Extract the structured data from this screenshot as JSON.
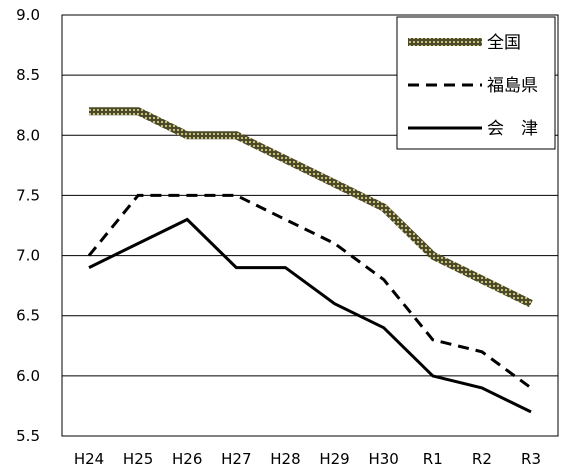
{
  "chart_data": {
    "type": "line",
    "title": "",
    "xlabel": "",
    "ylabel": "",
    "categories": [
      "H24",
      "H25",
      "H26",
      "H27",
      "H28",
      "H29",
      "H30",
      "R1",
      "R2",
      "R3"
    ],
    "ylim": [
      5.5,
      9.0
    ],
    "yticks": [
      "5.5",
      "6.0",
      "6.5",
      "7.0",
      "7.5",
      "8.0",
      "8.5",
      "9.0"
    ],
    "grid": true,
    "legend_position": "top-right",
    "series": [
      {
        "name": "全国",
        "style": "thick-dotted",
        "color": "#5c5a2e",
        "values": [
          8.2,
          8.2,
          8.0,
          8.0,
          7.8,
          7.6,
          7.4,
          7.0,
          6.8,
          6.6
        ]
      },
      {
        "name": "福島県",
        "style": "dashed",
        "color": "#000000",
        "values": [
          7.0,
          7.5,
          7.5,
          7.5,
          7.3,
          7.1,
          6.8,
          6.3,
          6.2,
          5.9
        ]
      },
      {
        "name": "会　津",
        "style": "solid",
        "color": "#000000",
        "values": [
          6.9,
          7.1,
          7.3,
          6.9,
          6.9,
          6.6,
          6.4,
          6.0,
          5.9,
          5.7
        ]
      }
    ]
  }
}
